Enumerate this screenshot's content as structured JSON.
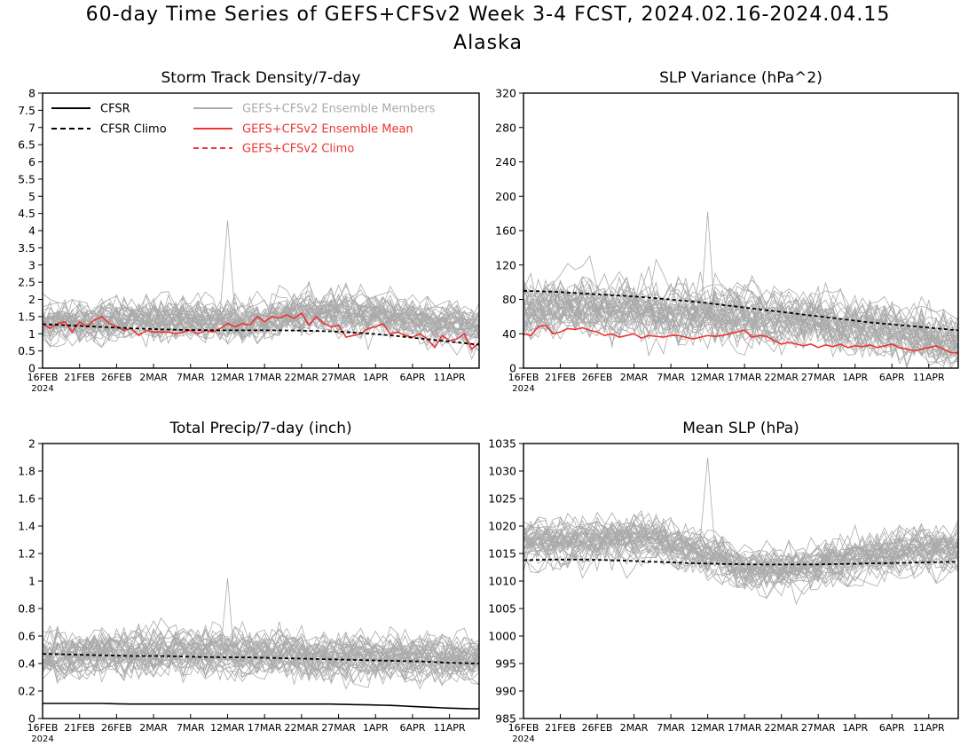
{
  "title": {
    "line1": "60-day Time Series of GEFS+CFSv2 Week 3-4 FCST, 2024.02.16-2024.04.15",
    "line2": "Alaska"
  },
  "colors": {
    "cfsr": "#000000",
    "ensemble_members": "#aaaaaa",
    "ensemble_mean": "#ee3333",
    "gefs_climo": "#ee3333",
    "cfsr_climo": "#000000"
  },
  "x_ticks": [
    "16FEB",
    "21FEB",
    "26FEB",
    "2MAR",
    "7MAR",
    "12MAR",
    "17MAR",
    "22MAR",
    "27MAR",
    "1APR",
    "6APR",
    "11APR"
  ],
  "x_year_label": "2024",
  "legend": {
    "cfsr": "CFSR",
    "cfsr_climo": "CFSR Climo",
    "members": "GEFS+CFSv2 Ensemble Members",
    "mean": "GEFS+CFSv2 Ensemble Mean",
    "gefs_climo": "GEFS+CFSv2 Climo"
  },
  "chart_data": [
    {
      "type": "line",
      "title": "Storm Track Density/7-day",
      "x_days": 60,
      "ylim": [
        0,
        8
      ],
      "y_ticks": [
        "0",
        "0.5",
        "1",
        "1.5",
        "2",
        "2.5",
        "3",
        "3.5",
        "4",
        "4.5",
        "5",
        "5.5",
        "6",
        "6.5",
        "7",
        "7.5",
        "8"
      ],
      "legend_position": "top",
      "series": [
        {
          "name": "GEFS+CFSv2 Ensemble Members",
          "count": 40,
          "center": [
            1.3,
            1.3,
            1.4,
            1.4,
            1.3,
            1.3,
            1.6,
            1.6,
            1.5,
            1.3,
            1.1
          ],
          "spread": 0.55,
          "max_value": 4.3
        },
        {
          "name": "GEFS+CFSv2 Ensemble Mean",
          "values": [
            1.3,
            1.15,
            1.3,
            1.35,
            1.05,
            1.35,
            1.2,
            1.4,
            1.5,
            1.3,
            1.2,
            1.1,
            1.15,
            0.95,
            1.1,
            1.05,
            1.05,
            1.05,
            1.0,
            1.05,
            1.1,
            1.0,
            1.1,
            1.05,
            1.15,
            1.3,
            1.2,
            1.3,
            1.25,
            1.5,
            1.35,
            1.5,
            1.45,
            1.55,
            1.45,
            1.6,
            1.25,
            1.5,
            1.3,
            1.2,
            1.25,
            0.9,
            0.95,
            1.0,
            1.15,
            1.2,
            1.3,
            1.0,
            1.05,
            0.95,
            0.9,
            1.0,
            0.85,
            0.6,
            0.95,
            0.8,
            0.85,
            1.0,
            0.55,
            0.75
          ]
        },
        {
          "name": "CFSR Climo",
          "values": [
            1.28,
            1.24,
            1.2,
            1.16,
            1.13,
            1.11,
            1.1,
            1.1,
            1.1,
            1.09,
            1.07,
            1.02,
            0.95,
            0.86,
            0.77,
            0.68
          ]
        }
      ]
    },
    {
      "type": "line",
      "title": "SLP Variance (hPa^2)",
      "x_days": 60,
      "ylim": [
        0,
        320
      ],
      "y_ticks": [
        "0",
        "40",
        "80",
        "120",
        "160",
        "200",
        "240",
        "280",
        "320"
      ],
      "series": [
        {
          "name": "GEFS+CFSv2 Ensemble Members",
          "count": 40,
          "center": [
            70,
            72,
            70,
            66,
            64,
            62,
            60,
            55,
            50,
            40,
            30
          ],
          "spread": 28,
          "max_value": 182
        },
        {
          "name": "GEFS+CFSv2 Ensemble Mean",
          "values": [
            40,
            38,
            48,
            50,
            40,
            42,
            46,
            45,
            47,
            44,
            42,
            38,
            40,
            36,
            38,
            40,
            35,
            38,
            37,
            36,
            38,
            38,
            36,
            34,
            36,
            38,
            37,
            38,
            40,
            42,
            44,
            36,
            38,
            37,
            32,
            28,
            30,
            28,
            26,
            28,
            24,
            27,
            25,
            28,
            24,
            26,
            25,
            27,
            24,
            26,
            28,
            24,
            22,
            20,
            22,
            24,
            26,
            22,
            18,
            18
          ]
        },
        {
          "name": "CFSR Climo",
          "values": [
            90,
            89,
            87,
            85,
            83,
            80,
            77,
            73,
            69,
            65,
            61,
            57,
            53,
            50,
            47,
            44
          ]
        }
      ]
    },
    {
      "type": "line",
      "title": "Total Precip/7-day (inch)",
      "x_days": 60,
      "ylim": [
        0,
        2
      ],
      "y_ticks": [
        "0",
        "0.2",
        "0.4",
        "0.6",
        "0.8",
        "1",
        "1.2",
        "1.4",
        "1.6",
        "1.8",
        "2"
      ],
      "series": [
        {
          "name": "GEFS+CFSv2 Ensemble Members",
          "count": 40,
          "center": [
            0.44,
            0.46,
            0.47,
            0.48,
            0.48,
            0.47,
            0.46,
            0.45,
            0.44,
            0.44,
            0.43
          ],
          "spread": 0.15,
          "max_value": 1.02
        },
        {
          "name": "CFSR",
          "values": [
            0.11,
            0.11,
            0.11,
            0.105,
            0.105,
            0.105,
            0.105,
            0.105,
            0.105,
            0.105,
            0.105,
            0.1,
            0.095,
            0.085,
            0.075,
            0.07
          ]
        },
        {
          "name": "CFSR Climo",
          "values": [
            0.47,
            0.465,
            0.46,
            0.455,
            0.455,
            0.45,
            0.445,
            0.445,
            0.44,
            0.435,
            0.43,
            0.425,
            0.42,
            0.415,
            0.405,
            0.4
          ]
        }
      ]
    },
    {
      "type": "line",
      "title": "Mean SLP (hPa)",
      "x_days": 60,
      "ylim": [
        985,
        1035
      ],
      "y_ticks": [
        "985",
        "990",
        "995",
        "1000",
        "1005",
        "1010",
        "1015",
        "1020",
        "1025",
        "1030",
        "1035"
      ],
      "series": [
        {
          "name": "GEFS+CFSv2 Ensemble Members",
          "count": 40,
          "center": [
            1017,
            1017.5,
            1018,
            1018,
            1016,
            1013,
            1012.5,
            1013.5,
            1015,
            1016,
            1016
          ],
          "spread": 3.5,
          "max_value": 1032.5
        },
        {
          "name": "CFSR Climo",
          "values": [
            1013.8,
            1013.9,
            1013.9,
            1013.8,
            1013.6,
            1013.4,
            1013.2,
            1013.1,
            1013.0,
            1013.0,
            1013.0,
            1013.1,
            1013.2,
            1013.3,
            1013.4,
            1013.5
          ]
        }
      ]
    }
  ]
}
